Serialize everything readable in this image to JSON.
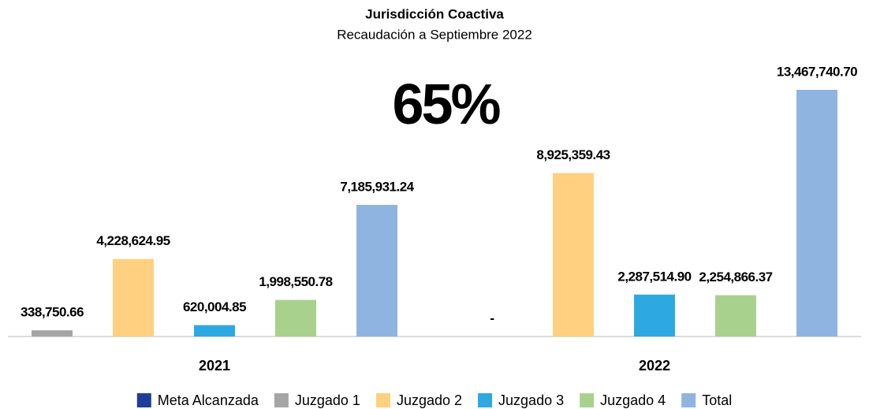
{
  "chart_data": {
    "type": "bar",
    "title": "Jurisdicción Coactiva",
    "subtitle": "Recaudación a Septiembre 2022",
    "annotation": "65%",
    "categories": [
      "2021",
      "2022"
    ],
    "series": [
      {
        "name": "Meta Alcanzada",
        "color": "#1f3d99",
        "values": [
          null,
          null
        ]
      },
      {
        "name": "Juzgado 1",
        "color": "#a5a5a5",
        "values": [
          338750.66,
          0
        ],
        "value_labels": [
          "338,750.66",
          "-"
        ]
      },
      {
        "name": "Juzgado 2",
        "color": "#ffd07f",
        "values": [
          4228624.95,
          8925359.43
        ],
        "value_labels": [
          "4,228,624.95",
          "8,925,359.43"
        ]
      },
      {
        "name": "Juzgado 3",
        "color": "#2ea8e0",
        "values": [
          620004.85,
          2287514.9
        ],
        "value_labels": [
          "620,004.85",
          "2,287,514.90"
        ]
      },
      {
        "name": "Juzgado 4",
        "color": "#a9d18e",
        "values": [
          1998550.78,
          2254866.37
        ],
        "value_labels": [
          "1,998,550.78",
          "2,254,866.37"
        ]
      },
      {
        "name": "Total",
        "color": "#8fb4e0",
        "values": [
          7185931.24,
          13467740.7
        ],
        "value_labels": [
          "7,185,931.24",
          "13,467,740.70"
        ]
      }
    ],
    "legend": "bottom"
  }
}
